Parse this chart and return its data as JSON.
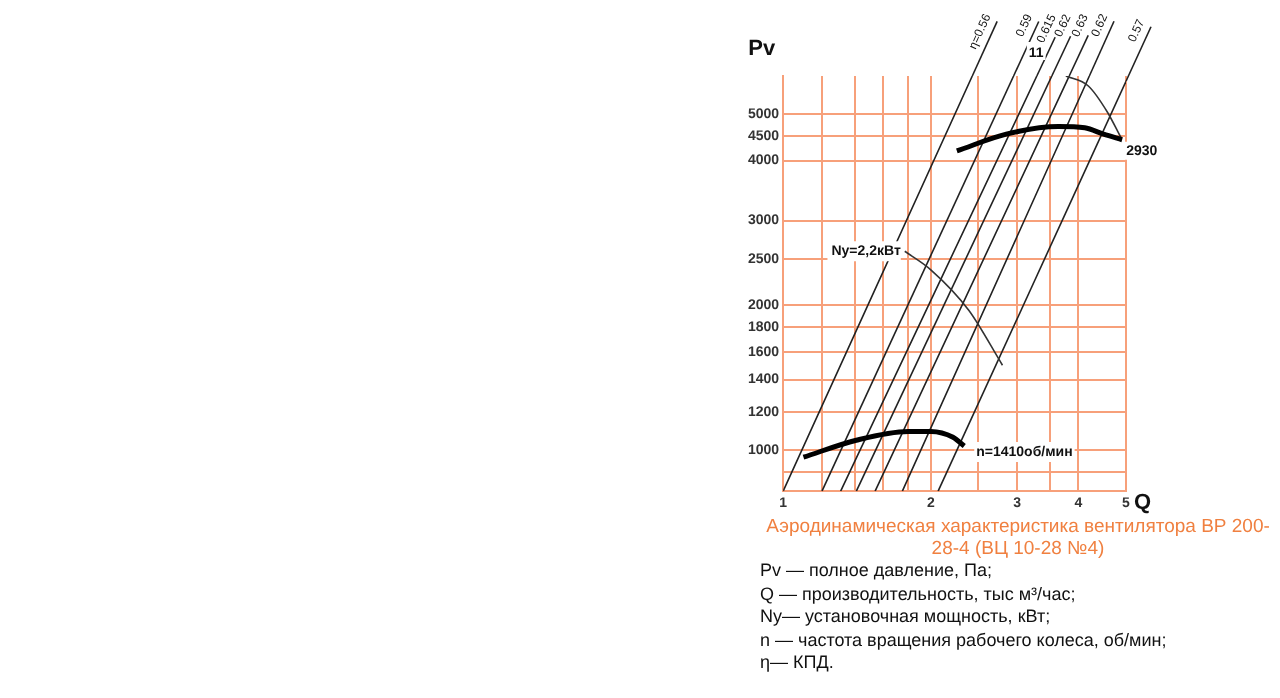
{
  "chart_data": {
    "type": "line",
    "title": "Аэродинамическая характеристика вентилятора  ВР 200-28-4 (ВЦ 10-28 №4)",
    "xlabel": "Q",
    "ylabel": "Pv",
    "log": "xy",
    "grid": true,
    "legend": false,
    "marker": "none",
    "line_style": "solid",
    "xlim": [
      1,
      5
    ],
    "ylim": [
      820,
      6000
    ],
    "xticks": [
      1,
      {
        "value": 1.2,
        "label": null
      },
      {
        "value": 1.4,
        "label": null
      },
      {
        "value": 1.6,
        "label": null
      },
      {
        "value": 1.8,
        "label": null
      },
      2,
      {
        "value": 2.5,
        "label": null
      },
      3,
      {
        "value": 3.5,
        "label": null
      },
      4,
      5
    ],
    "yticks": [
      {
        "value": 900,
        "label": null
      },
      1000,
      1200,
      1400,
      1600,
      1800,
      2000,
      2500,
      3000,
      4000,
      4500,
      5000
    ],
    "series": [
      {
        "color": "#000000",
        "x": [
          1.1,
          1.41,
          1.8,
          2.0,
          2.22,
          2.34
        ],
        "values": [
          965,
          1047,
          1092,
          1092,
          1062,
          1018
        ]
      },
      {
        "color": "#000000",
        "x": [
          2.26,
          2.85,
          3.64,
          4.12,
          4.5,
          4.91
        ],
        "values": [
          4190,
          4540,
          4710,
          4680,
          4540,
          4420
        ]
      },
      {
        "color": "#333333",
        "x": [
          1.77,
          2.0,
          2.39,
          2.8
        ],
        "values": [
          2590,
          2370,
          1952,
          1500
        ]
      },
      {
        "color": "#333333",
        "x": [
          3.77,
          4.19,
          4.58,
          4.88
        ],
        "values": [
          6000,
          5720,
          5050,
          4470
        ]
      },
      {
        "name": "η=0.56",
        "color": "#222222",
        "x": [
          1.0,
          2.43
        ],
        "values": [
          820,
          6000
        ]
      },
      {
        "name": "0.59",
        "color": "#222222",
        "x": [
          1.2,
          2.95
        ],
        "values": [
          820,
          6000
        ]
      },
      {
        "name": "0.615",
        "color": "#222222",
        "x": [
          1.31,
          3.29
        ],
        "values": [
          820,
          6000
        ]
      },
      {
        "name": "0.62",
        "color": "#222222",
        "x": [
          1.41,
          3.53
        ],
        "values": [
          820,
          6000
        ]
      },
      {
        "name": "0.63",
        "color": "#222222",
        "x": [
          1.54,
          3.83
        ],
        "values": [
          820,
          6000
        ]
      },
      {
        "name": "0.62",
        "color": "#222222",
        "x": [
          1.75,
          4.21
        ],
        "values": [
          820,
          6000
        ]
      },
      {
        "name": "0.57",
        "color": "#222222",
        "x": [
          2.07,
          5.0
        ],
        "values": [
          820,
          5850
        ]
      }
    ],
    "annotations": [
      {
        "text": "Ny=2,2кВт",
        "x": 1.77,
        "y": 2590
      },
      {
        "text": "11",
        "x": 3.28,
        "y": 6000
      },
      {
        "text": "2930",
        "x": 4.91,
        "y": 4420
      },
      {
        "text": "n=1410об/мин",
        "x": 2.34,
        "y": 1018
      },
      "Pv — полное давление, Па;",
      "Q  — производительность, тыс м³/час;",
      "Ny— установочная мощность, кВт;",
      "n — частота вращения рабочего колеса,  об/мин;",
      "η— КПД."
    ]
  }
}
